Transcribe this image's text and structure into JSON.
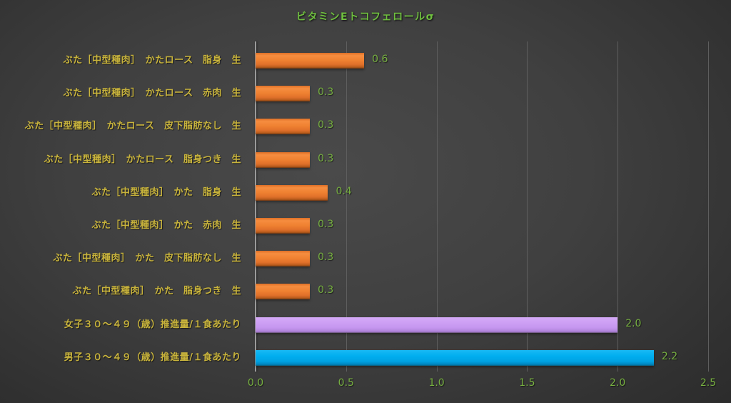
{
  "header": {
    "title": "ビタミンEトコフェロールσ"
  },
  "chart_data": {
    "type": "bar",
    "orientation": "horizontal",
    "title": "ビタミンEトコフェロールσ",
    "categories": [
      "ぶた［中型種肉］　かたロース　脂身　生",
      "ぶた［中型種肉］　かたロース　赤肉　生",
      "ぶた［中型種肉］　かたロース　皮下脂肪なし　生",
      "ぶた［中型種肉］　かたロース　脂身つき　生",
      "ぶた［中型種肉］　かた　脂身　生",
      "ぶた［中型種肉］　かた　赤肉　生",
      "ぶた［中型種肉］　かた　皮下脂肪なし　生",
      "ぶた［中型種肉］　かた　脂身つき　生",
      "女子３０～４９（歳）推進量/１食あたり",
      "男子３０～４９（歳）推進量/１食あたり"
    ],
    "values": [
      0.6,
      0.3,
      0.3,
      0.3,
      0.4,
      0.3,
      0.3,
      0.3,
      2.0,
      2.2
    ],
    "value_labels": [
      "0.6",
      "0.3",
      "0.3",
      "0.3",
      "0.4",
      "0.3",
      "0.3",
      "0.3",
      "2.0",
      "2.2"
    ],
    "bar_color_keys": [
      "orange",
      "orange",
      "orange",
      "orange",
      "orange",
      "orange",
      "orange",
      "orange",
      "purple",
      "blue"
    ],
    "xlabel": "",
    "ylabel": "",
    "xlim": [
      0,
      2.5
    ],
    "xticks": [
      0.0,
      0.5,
      1.0,
      1.5,
      2.0,
      2.5
    ],
    "xtick_labels": [
      "0.0",
      "0.5",
      "1.0",
      "1.5",
      "2.0",
      "2.5"
    ],
    "grid": true,
    "legend": false
  },
  "colors": {
    "title_text": "#6fbf3f",
    "category_text": "#c9b43c",
    "value_text": "#77b041",
    "tick_text": "#77b041",
    "bar_orange": "#ed7d31",
    "bar_purple": "#c9a0f0",
    "bar_blue": "#00aeef",
    "gridline": "#5e5e5e",
    "axis_line": "#9a9a9a",
    "background_center": "#4a4a4a",
    "background_edge": "#262626"
  }
}
